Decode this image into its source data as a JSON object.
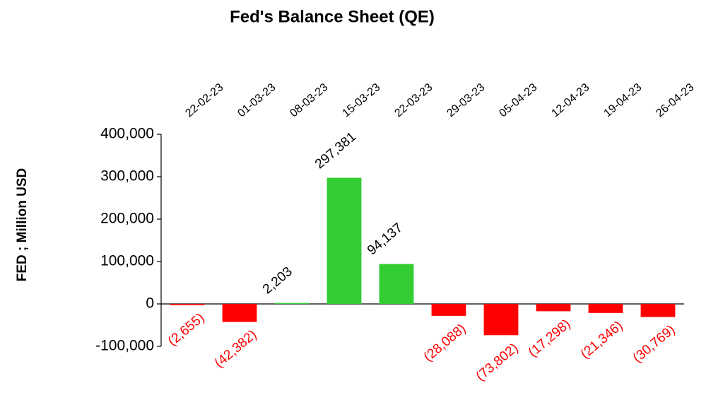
{
  "chart_data": {
    "type": "bar",
    "title": "Fed's Balance Sheet (QE)",
    "y_label": "FED ; Million USD",
    "categories": [
      "22-02-23",
      "01-03-23",
      "08-03-23",
      "15-03-23",
      "22-03-23",
      "29-03-23",
      "05-04-23",
      "12-04-23",
      "19-04-23",
      "26-04-23"
    ],
    "values": [
      -2655,
      -42382,
      2203,
      297381,
      94137,
      -28088,
      -73802,
      -17298,
      -21346,
      -30769
    ],
    "value_labels": [
      "(2,655)",
      "(42,382)",
      "2,203",
      "297,381",
      "94,137",
      "(28,088)",
      "(73,802)",
      "(17,298)",
      "(21,346)",
      "(30,769)"
    ],
    "positive_color": "#33cc33",
    "negative_color": "#ff0000",
    "positive_label_color": "#000000",
    "negative_label_color": "#ff0000",
    "ylim": [
      -100000,
      400000
    ],
    "yticks": [
      {
        "value": -100000,
        "label": "-100,000"
      },
      0,
      {
        "value": 100000,
        "label": "100,000"
      },
      {
        "value": 200000,
        "label": "200,000"
      },
      {
        "value": 300000,
        "label": "300,000"
      },
      {
        "value": 400000,
        "label": "400,000"
      }
    ],
    "grid": false
  }
}
